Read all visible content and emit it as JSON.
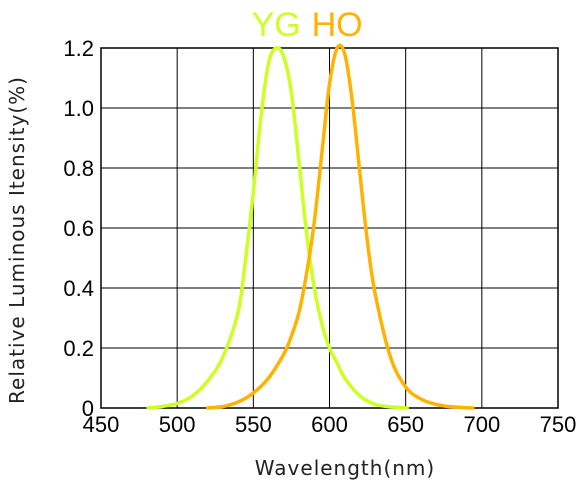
{
  "chart_data": {
    "type": "line",
    "title": "",
    "xlabel": "Wavelength(nm)",
    "ylabel": "Relative Luminous Itensity(%)",
    "xlim": [
      450,
      750
    ],
    "ylim": [
      0,
      1.2
    ],
    "x_ticks": [
      450,
      500,
      550,
      600,
      650,
      700,
      750
    ],
    "y_ticks": [
      0,
      0.2,
      0.4,
      0.6,
      0.8,
      1.0,
      1.2
    ],
    "x_tick_labels": [
      "450",
      "500",
      "550",
      "600",
      "650",
      "700",
      "750"
    ],
    "y_tick_labels": [
      "0",
      "0.2",
      "0.4",
      "0.6",
      "0.8",
      "1.0",
      "1.2"
    ],
    "grid": true,
    "legend": "top, above plot",
    "series": [
      {
        "name": "YG",
        "color": "#ccff22",
        "x": [
          481,
          490,
          500,
          510,
          520,
          530,
          540,
          545,
          550,
          555,
          560,
          565,
          570,
          575,
          580,
          585,
          590,
          595,
          600,
          605,
          610,
          620,
          630,
          640,
          651
        ],
        "y": [
          0.0,
          0.005,
          0.015,
          0.04,
          0.09,
          0.17,
          0.32,
          0.5,
          0.72,
          0.97,
          1.15,
          1.2,
          1.17,
          1.05,
          0.82,
          0.58,
          0.4,
          0.28,
          0.2,
          0.15,
          0.1,
          0.04,
          0.012,
          0.004,
          0.0
        ]
      },
      {
        "name": "HO",
        "color": "#ffb300",
        "x": [
          520,
          530,
          540,
          550,
          560,
          570,
          575,
          580,
          585,
          590,
          595,
          600,
          605,
          610,
          615,
          620,
          625,
          630,
          640,
          650,
          660,
          670,
          680,
          694
        ],
        "y": [
          0.0,
          0.005,
          0.02,
          0.05,
          0.1,
          0.18,
          0.24,
          0.32,
          0.45,
          0.62,
          0.85,
          1.08,
          1.2,
          1.18,
          1.02,
          0.78,
          0.55,
          0.38,
          0.17,
          0.07,
          0.03,
          0.012,
          0.004,
          0.0
        ]
      }
    ]
  }
}
